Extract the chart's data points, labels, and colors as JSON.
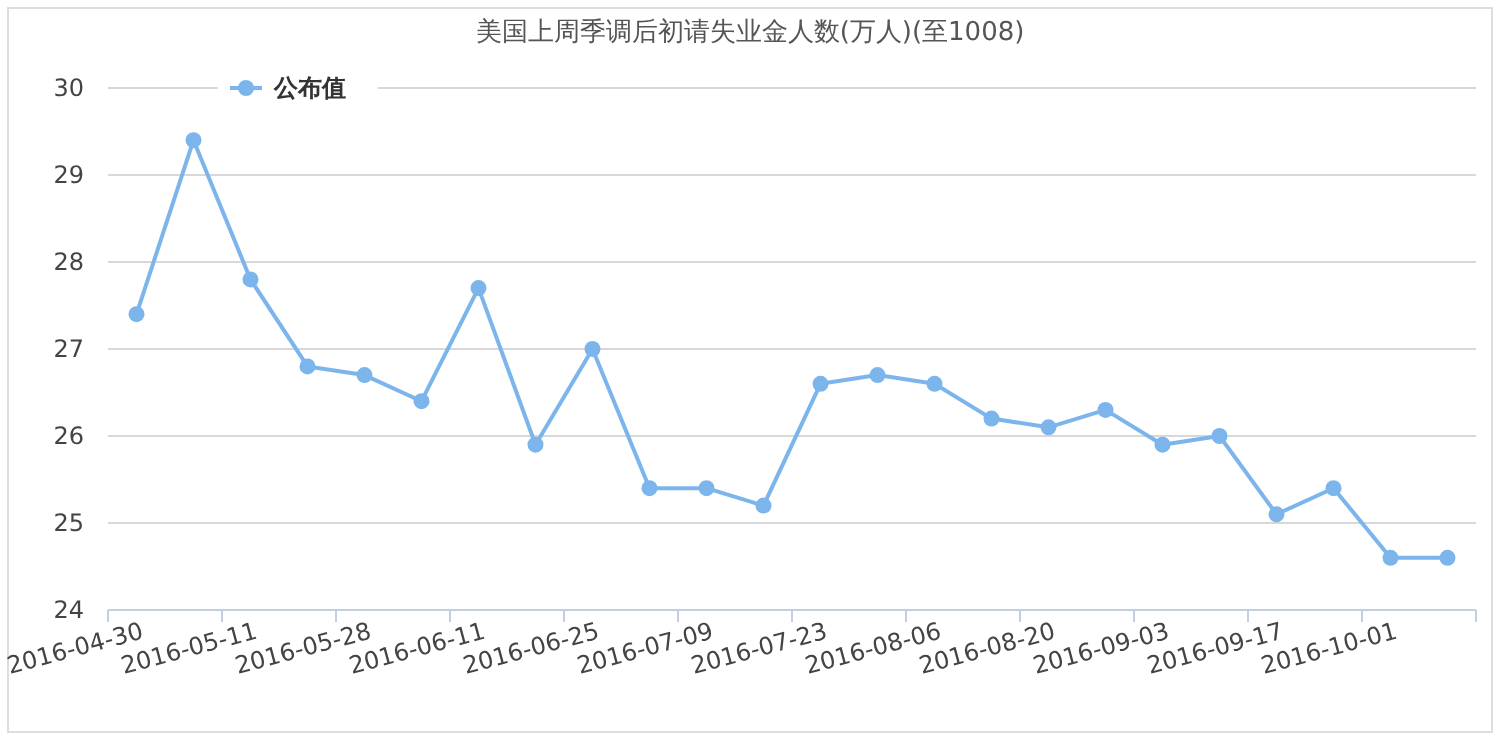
{
  "chart_data": {
    "type": "line",
    "title": "美国上周季调后初请失业金人数(万人)(至1008)",
    "categories": [
      "2016-04-30",
      null,
      "2016-05-11",
      null,
      "2016-05-28",
      null,
      "2016-06-11",
      null,
      "2016-06-25",
      null,
      "2016-07-09",
      null,
      "2016-07-23",
      null,
      "2016-08-06",
      null,
      "2016-08-20",
      null,
      "2016-09-03",
      null,
      "2016-09-17",
      null,
      "2016-10-01",
      null
    ],
    "series": [
      {
        "name": "公布值",
        "color": "#7cb5ec",
        "values": [
          27.4,
          29.4,
          27.8,
          26.8,
          26.7,
          26.4,
          27.7,
          25.9,
          27.0,
          25.4,
          25.4,
          25.2,
          26.6,
          26.7,
          26.6,
          26.2,
          26.1,
          26.3,
          25.9,
          26.0,
          25.1,
          25.4,
          24.6,
          24.6
        ]
      }
    ],
    "ylim": [
      24,
      30
    ],
    "yticks": [
      24,
      25,
      26,
      27,
      28,
      29,
      30
    ],
    "grid": "y",
    "legend": "top left",
    "marker": "circle",
    "line_style": "solid"
  }
}
